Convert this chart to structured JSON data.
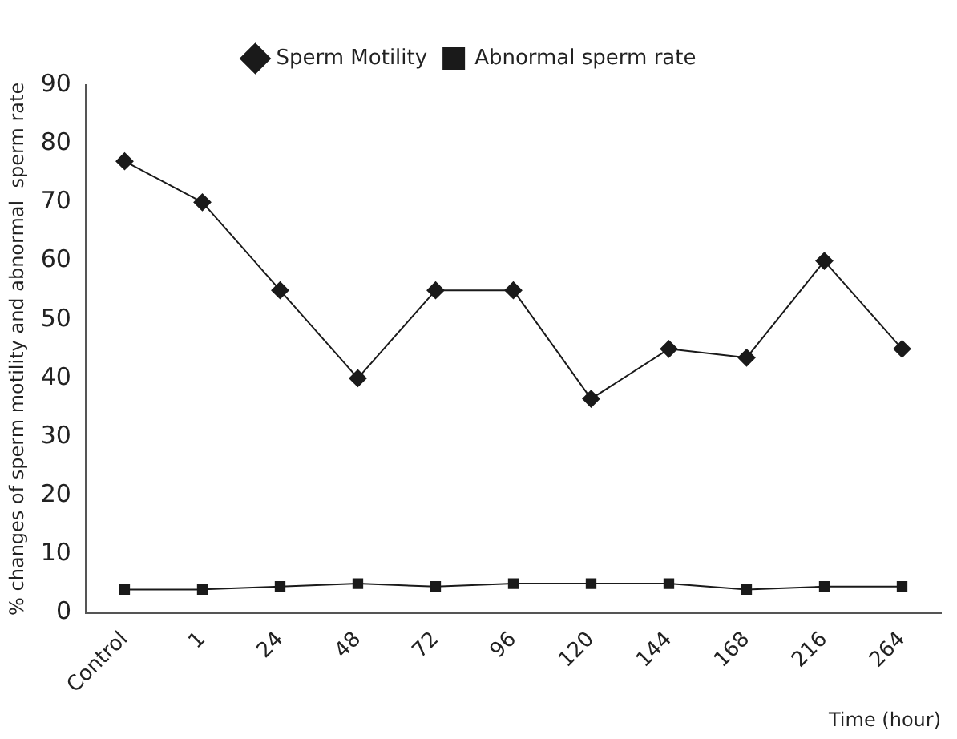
{
  "chart_data": {
    "type": "line",
    "xlabel": "Time (hour)",
    "ylabel": "% changes of sperm motility and abnormal  sperm rate",
    "categories": [
      "Control",
      "1",
      "24",
      "48",
      "72",
      "96",
      "120",
      "144",
      "168",
      "216",
      "264"
    ],
    "series": [
      {
        "name": "Sperm Motility",
        "color": "#1a1a1a",
        "marker": "diamond",
        "values": [
          77,
          70,
          55,
          40,
          55,
          55,
          36.5,
          45,
          43.5,
          60,
          45
        ]
      },
      {
        "name": "Abnormal sperm rate",
        "color": "#1a1a1a",
        "marker": "square",
        "values": [
          4,
          4,
          4.5,
          5,
          4.5,
          5,
          5,
          5,
          4,
          4.5,
          4.5
        ]
      }
    ],
    "ylim": [
      0,
      90
    ],
    "yticks": [
      0,
      10,
      20,
      30,
      40,
      50,
      60,
      70,
      80,
      90
    ],
    "grid": false,
    "legend": "top",
    "line_style": "solid"
  }
}
